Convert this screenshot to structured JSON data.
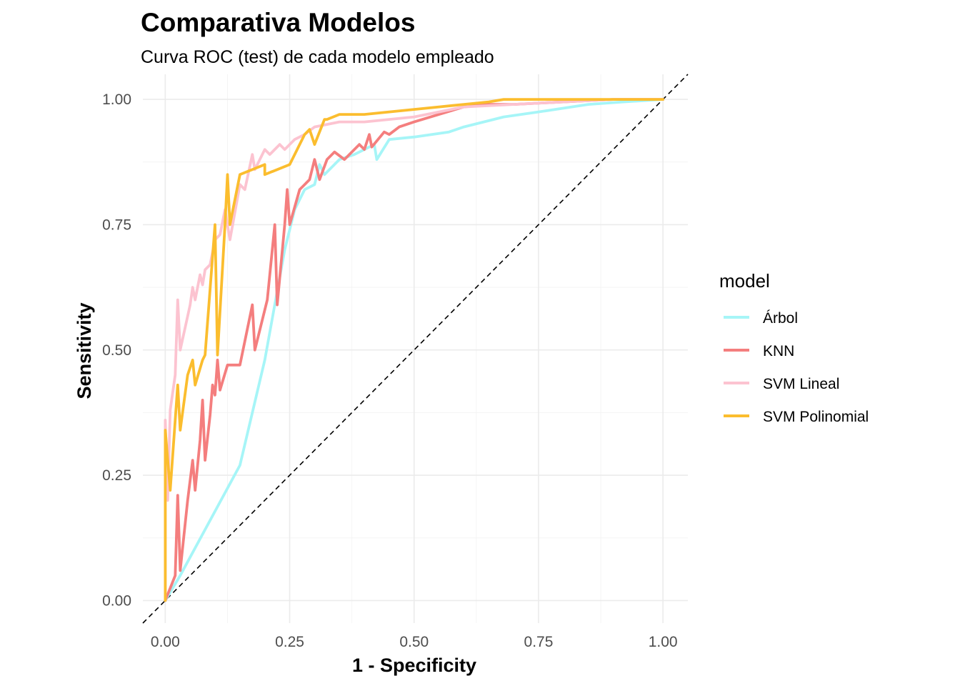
{
  "chart_data": {
    "type": "line",
    "title": "Comparativa Modelos",
    "subtitle": "Curva ROC (test) de cada modelo empleado",
    "xlabel": "1 - Specificity",
    "ylabel": "Sensitivity",
    "xlim": [
      -0.045,
      1.05
    ],
    "ylim": [
      -0.045,
      1.05
    ],
    "x_ticks": [
      "0.00",
      "0.25",
      "0.50",
      "0.75",
      "1.00"
    ],
    "y_ticks": [
      "0.00",
      "0.25",
      "0.50",
      "0.75",
      "1.00"
    ],
    "grid": true,
    "legend": {
      "title": "model",
      "position": "right"
    },
    "diagonal_reference": true,
    "series": [
      {
        "name": "Árbol",
        "color": "#a6f5f7",
        "points": [
          [
            0,
            0
          ],
          [
            0.03,
            0.05
          ],
          [
            0.15,
            0.27
          ],
          [
            0.2,
            0.48
          ],
          [
            0.24,
            0.7
          ],
          [
            0.26,
            0.78
          ],
          [
            0.28,
            0.82
          ],
          [
            0.3,
            0.83
          ],
          [
            0.31,
            0.87
          ],
          [
            0.32,
            0.85
          ],
          [
            0.35,
            0.88
          ],
          [
            0.38,
            0.89
          ],
          [
            0.42,
            0.91
          ],
          [
            0.425,
            0.88
          ],
          [
            0.45,
            0.92
          ],
          [
            0.5,
            0.925
          ],
          [
            0.57,
            0.935
          ],
          [
            0.6,
            0.945
          ],
          [
            0.68,
            0.965
          ],
          [
            0.75,
            0.975
          ],
          [
            0.85,
            0.99
          ],
          [
            0.92,
            0.995
          ],
          [
            1.0,
            1.0
          ]
        ]
      },
      {
        "name": "KNN",
        "color": "#f47e7e",
        "points": [
          [
            0,
            0
          ],
          [
            0.02,
            0.05
          ],
          [
            0.025,
            0.21
          ],
          [
            0.03,
            0.06
          ],
          [
            0.045,
            0.2
          ],
          [
            0.055,
            0.28
          ],
          [
            0.06,
            0.22
          ],
          [
            0.07,
            0.32
          ],
          [
            0.075,
            0.4
          ],
          [
            0.08,
            0.28
          ],
          [
            0.09,
            0.37
          ],
          [
            0.095,
            0.43
          ],
          [
            0.1,
            0.41
          ],
          [
            0.105,
            0.48
          ],
          [
            0.11,
            0.42
          ],
          [
            0.125,
            0.47
          ],
          [
            0.15,
            0.47
          ],
          [
            0.175,
            0.59
          ],
          [
            0.18,
            0.5
          ],
          [
            0.205,
            0.6
          ],
          [
            0.22,
            0.75
          ],
          [
            0.225,
            0.59
          ],
          [
            0.24,
            0.75
          ],
          [
            0.245,
            0.82
          ],
          [
            0.25,
            0.75
          ],
          [
            0.27,
            0.82
          ],
          [
            0.28,
            0.83
          ],
          [
            0.29,
            0.84
          ],
          [
            0.3,
            0.88
          ],
          [
            0.31,
            0.84
          ],
          [
            0.325,
            0.88
          ],
          [
            0.34,
            0.895
          ],
          [
            0.36,
            0.88
          ],
          [
            0.39,
            0.91
          ],
          [
            0.4,
            0.9
          ],
          [
            0.41,
            0.93
          ],
          [
            0.415,
            0.905
          ],
          [
            0.44,
            0.935
          ],
          [
            0.45,
            0.93
          ],
          [
            0.47,
            0.945
          ],
          [
            0.5,
            0.955
          ],
          [
            0.55,
            0.97
          ],
          [
            0.6,
            0.985
          ],
          [
            0.65,
            0.99
          ],
          [
            0.7,
            0.99
          ],
          [
            0.8,
            0.995
          ],
          [
            0.9,
            1.0
          ],
          [
            1.0,
            1.0
          ]
        ]
      },
      {
        "name": "SVM Lineal",
        "color": "#fcc3d0",
        "points": [
          [
            0,
            0
          ],
          [
            0,
            0.36
          ],
          [
            0.005,
            0.2
          ],
          [
            0.01,
            0.38
          ],
          [
            0.02,
            0.45
          ],
          [
            0.025,
            0.6
          ],
          [
            0.03,
            0.5
          ],
          [
            0.05,
            0.59
          ],
          [
            0.055,
            0.625
          ],
          [
            0.06,
            0.6
          ],
          [
            0.07,
            0.65
          ],
          [
            0.075,
            0.63
          ],
          [
            0.08,
            0.66
          ],
          [
            0.09,
            0.67
          ],
          [
            0.1,
            0.72
          ],
          [
            0.11,
            0.73
          ],
          [
            0.12,
            0.78
          ],
          [
            0.13,
            0.72
          ],
          [
            0.15,
            0.83
          ],
          [
            0.16,
            0.82
          ],
          [
            0.175,
            0.89
          ],
          [
            0.18,
            0.86
          ],
          [
            0.2,
            0.9
          ],
          [
            0.21,
            0.89
          ],
          [
            0.23,
            0.91
          ],
          [
            0.24,
            0.9
          ],
          [
            0.26,
            0.92
          ],
          [
            0.28,
            0.93
          ],
          [
            0.3,
            0.945
          ],
          [
            0.35,
            0.955
          ],
          [
            0.4,
            0.955
          ],
          [
            0.45,
            0.96
          ],
          [
            0.5,
            0.965
          ],
          [
            0.55,
            0.975
          ],
          [
            0.6,
            0.985
          ],
          [
            0.7,
            0.99
          ],
          [
            0.8,
            0.995
          ],
          [
            0.9,
            1.0
          ],
          [
            1.0,
            1.0
          ]
        ]
      },
      {
        "name": "SVM Polinomial",
        "color": "#fbbd2e",
        "points": [
          [
            0,
            0
          ],
          [
            0,
            0.34
          ],
          [
            0.01,
            0.22
          ],
          [
            0.02,
            0.36
          ],
          [
            0.025,
            0.43
          ],
          [
            0.03,
            0.34
          ],
          [
            0.045,
            0.45
          ],
          [
            0.055,
            0.48
          ],
          [
            0.06,
            0.43
          ],
          [
            0.075,
            0.48
          ],
          [
            0.08,
            0.49
          ],
          [
            0.1,
            0.75
          ],
          [
            0.105,
            0.49
          ],
          [
            0.12,
            0.75
          ],
          [
            0.125,
            0.85
          ],
          [
            0.13,
            0.75
          ],
          [
            0.15,
            0.85
          ],
          [
            0.2,
            0.87
          ],
          [
            0.2,
            0.85
          ],
          [
            0.25,
            0.87
          ],
          [
            0.28,
            0.93
          ],
          [
            0.29,
            0.94
          ],
          [
            0.3,
            0.91
          ],
          [
            0.32,
            0.96
          ],
          [
            0.325,
            0.96
          ],
          [
            0.35,
            0.97
          ],
          [
            0.4,
            0.97
          ],
          [
            0.45,
            0.975
          ],
          [
            0.5,
            0.98
          ],
          [
            0.55,
            0.985
          ],
          [
            0.6,
            0.99
          ],
          [
            0.65,
            0.995
          ],
          [
            0.68,
            1.0
          ],
          [
            0.7,
            1.0
          ],
          [
            0.8,
            1.0
          ],
          [
            0.9,
            1.0
          ],
          [
            1.0,
            1.0
          ]
        ]
      }
    ]
  }
}
